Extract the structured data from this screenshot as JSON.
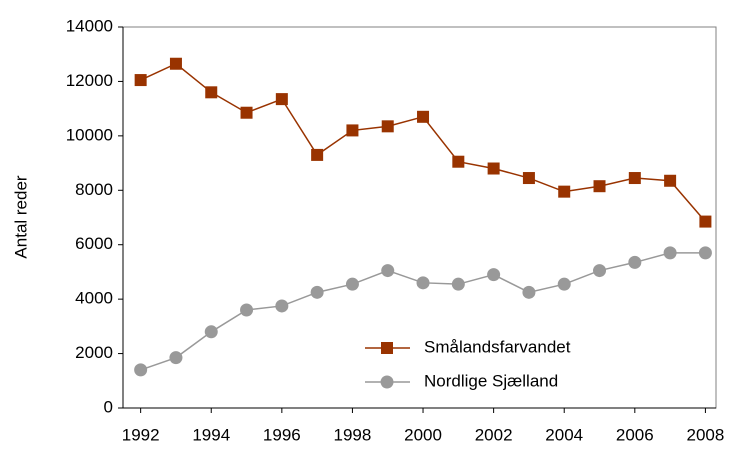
{
  "chart_data": {
    "type": "line",
    "y_label": "Antal reder",
    "x": [
      1992,
      1993,
      1994,
      1995,
      1996,
      1997,
      1998,
      1999,
      2000,
      2001,
      2002,
      2003,
      2004,
      2005,
      2006,
      2007,
      2008
    ],
    "series": [
      {
        "name": "Smålandsfarvandet",
        "color": "#993300",
        "marker": "square",
        "values": [
          12050,
          12650,
          11600,
          10850,
          11350,
          9300,
          10200,
          10350,
          10700,
          9050,
          8800,
          8450,
          7950,
          8150,
          8450,
          8350,
          6850
        ]
      },
      {
        "name": "Nordlige Sjælland",
        "color": "#999999",
        "marker": "circle",
        "values": [
          1400,
          1850,
          2800,
          3600,
          3750,
          4250,
          4550,
          5050,
          4600,
          4550,
          4900,
          4250,
          4550,
          5050,
          5350,
          5700,
          5700
        ]
      }
    ],
    "xlim": [
      1991.5,
      2008.3
    ],
    "xticks": [
      1992,
      1994,
      1996,
      1998,
      2000,
      2002,
      2004,
      2006,
      2008
    ],
    "ylim": [
      0,
      14000
    ],
    "yticks": [
      0,
      2000,
      4000,
      6000,
      8000,
      10000,
      12000,
      14000
    ]
  }
}
